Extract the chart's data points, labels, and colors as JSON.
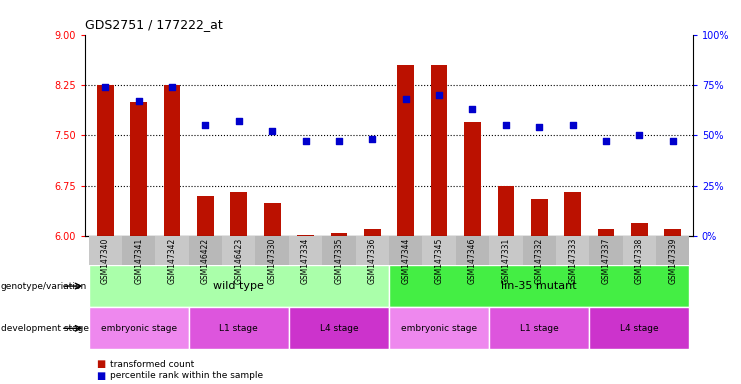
{
  "title": "GDS2751 / 177222_at",
  "samples": [
    "GSM147340",
    "GSM147341",
    "GSM147342",
    "GSM146422",
    "GSM146423",
    "GSM147330",
    "GSM147334",
    "GSM147335",
    "GSM147336",
    "GSM147344",
    "GSM147345",
    "GSM147346",
    "GSM147331",
    "GSM147332",
    "GSM147333",
    "GSM147337",
    "GSM147338",
    "GSM147339"
  ],
  "bar_values": [
    8.25,
    8.0,
    8.25,
    6.6,
    6.65,
    6.5,
    6.02,
    6.05,
    6.1,
    8.55,
    8.55,
    7.7,
    6.75,
    6.55,
    6.65,
    6.1,
    6.2,
    6.1
  ],
  "dot_values": [
    74,
    67,
    74,
    55,
    57,
    52,
    47,
    47,
    48,
    68,
    70,
    63,
    55,
    54,
    55,
    47,
    50,
    47
  ],
  "bar_color": "#bb1100",
  "dot_color": "#0000cc",
  "ylim_left": [
    6,
    9
  ],
  "ylim_right": [
    0,
    100
  ],
  "yticks_left": [
    6,
    6.75,
    7.5,
    8.25,
    9
  ],
  "yticks_right": [
    0,
    25,
    50,
    75,
    100
  ],
  "ytick_labels_right": [
    "0%",
    "25%",
    "50%",
    "75%",
    "100%"
  ],
  "hlines": [
    6.75,
    7.5,
    8.25
  ],
  "genotype_groups": [
    {
      "label": "wild type",
      "start": 0,
      "end": 9,
      "color": "#aaffaa"
    },
    {
      "label": "lin-35 mutant",
      "start": 9,
      "end": 18,
      "color": "#44ee44"
    }
  ],
  "stage_groups": [
    {
      "label": "embryonic stage",
      "start": 0,
      "end": 3,
      "color": "#ee88ee"
    },
    {
      "label": "L1 stage",
      "start": 3,
      "end": 6,
      "color": "#dd55dd"
    },
    {
      "label": "L4 stage",
      "start": 6,
      "end": 9,
      "color": "#cc33cc"
    },
    {
      "label": "embryonic stage",
      "start": 9,
      "end": 12,
      "color": "#ee88ee"
    },
    {
      "label": "L1 stage",
      "start": 12,
      "end": 15,
      "color": "#dd55dd"
    },
    {
      "label": "L4 stage",
      "start": 15,
      "end": 18,
      "color": "#cc33cc"
    }
  ],
  "genotype_label": "genotype/variation",
  "stage_label": "development stage",
  "legend_bar": "transformed count",
  "legend_dot": "percentile rank within the sample",
  "bar_width": 0.5,
  "background_color": "#ffffff",
  "tick_area_color": "#c8c8c8"
}
